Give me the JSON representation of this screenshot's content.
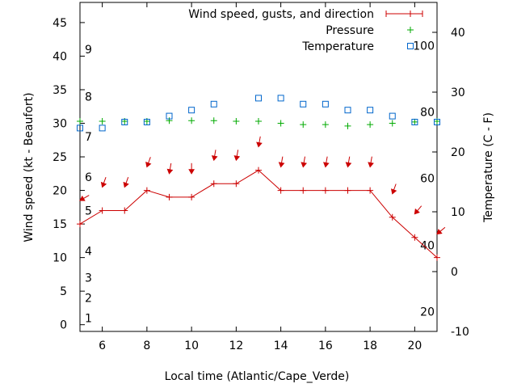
{
  "chart_data": {
    "type": "line",
    "xlabel": "Local time (Atlantic/Cape_Verde)",
    "ylabel": "Wind speed (kt - Beaufort)",
    "y2label": "Temperature (C - F)",
    "xlim": [
      5,
      21
    ],
    "ylim": [
      -1,
      48
    ],
    "y2lim": [
      -10,
      45
    ],
    "x_ticks": [
      6,
      8,
      10,
      12,
      14,
      16,
      18,
      20
    ],
    "y_ticks": [
      0,
      5,
      10,
      15,
      20,
      25,
      30,
      35,
      40,
      45
    ],
    "y2_ticks": [
      -10,
      0,
      10,
      20,
      30,
      40
    ],
    "beaufort_labels": [
      {
        "text": "1",
        "y": 1
      },
      {
        "text": "2",
        "y": 4
      },
      {
        "text": "3",
        "y": 7
      },
      {
        "text": "4",
        "y": 11
      },
      {
        "text": "5",
        "y": 17
      },
      {
        "text": "6",
        "y": 22
      },
      {
        "text": "7",
        "y": 28
      },
      {
        "text": "8",
        "y": 34
      },
      {
        "text": "9",
        "y": 41
      }
    ],
    "fahrenheit_labels": [
      {
        "text": "20",
        "c": -6.7
      },
      {
        "text": "40",
        "c": 4.4
      },
      {
        "text": "60",
        "c": 15.6
      },
      {
        "text": "80",
        "c": 26.7
      },
      {
        "text": "100",
        "c": 37.8
      }
    ],
    "legend_position": "top-right",
    "series": [
      {
        "name": "Wind speed, gusts, and direction",
        "color": "#cc0000",
        "x": [
          5,
          6,
          7,
          8,
          9,
          10,
          11,
          12,
          13,
          14,
          15,
          16,
          17,
          18,
          19,
          20,
          21
        ],
        "values": [
          15,
          17,
          17,
          20,
          19,
          19,
          21,
          21,
          23,
          20,
          20,
          20,
          20,
          20,
          16,
          13,
          10
        ],
        "gusts": [
          18.5,
          20.5,
          20.5,
          23.5,
          22.5,
          22.5,
          24.5,
          24.5,
          26.5,
          23.5,
          23.5,
          23.5,
          23.5,
          23.5,
          19.5,
          16.5,
          13.5
        ],
        "direction_deg": [
          60,
          20,
          20,
          20,
          10,
          0,
          10,
          10,
          10,
          10,
          10,
          10,
          10,
          10,
          20,
          40,
          50
        ]
      },
      {
        "name": "Pressure",
        "color": "#00aa00",
        "marker": "plus",
        "x": [
          5,
          6,
          7,
          8,
          9,
          10,
          11,
          12,
          13,
          14,
          15,
          16,
          17,
          18,
          19,
          20,
          21
        ],
        "values": [
          30.3,
          30.3,
          30.3,
          30.3,
          30.4,
          30.4,
          30.4,
          30.3,
          30.3,
          30.0,
          29.8,
          29.8,
          29.6,
          29.8,
          30.0,
          30.2,
          30.3
        ]
      },
      {
        "name": "Temperature",
        "color": "#0066cc",
        "marker": "square",
        "x": [
          5,
          6,
          7,
          8,
          9,
          10,
          11,
          12,
          13,
          14,
          15,
          16,
          17,
          18,
          19,
          20,
          21
        ],
        "values": [
          24,
          24,
          25,
          25,
          26,
          27,
          28,
          null,
          29,
          29,
          28,
          28,
          27,
          27,
          26,
          25,
          25
        ]
      }
    ]
  }
}
